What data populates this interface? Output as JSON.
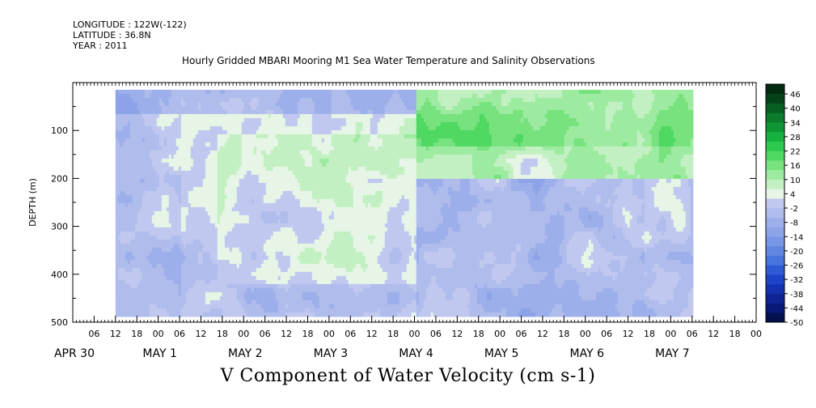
{
  "header": {
    "longitude": "LONGITUDE : 122W(-122)",
    "latitude": "LATITUDE : 36.8N",
    "year": "YEAR : 2011",
    "title": "Hourly Gridded MBARI Mooring M1 Sea Water Temperature and Salinity Observations"
  },
  "chart_data": {
    "type": "heatmap",
    "title": "Hourly Gridded MBARI Mooring M1 Sea Water Temperature and Salinity Observations",
    "xlabel": "V Component of Water Velocity (cm s-1)",
    "ylabel": "DEPTH (m)",
    "x_ticks": [
      "06",
      "12",
      "18",
      "00",
      "06",
      "12",
      "18",
      "00",
      "06",
      "12",
      "18",
      "00",
      "06",
      "12",
      "18",
      "00",
      "06",
      "12",
      "18",
      "00",
      "06",
      "12",
      "18",
      "00",
      "06",
      "12",
      "18",
      "00",
      "06",
      "12",
      "18",
      "00"
    ],
    "date_labels": [
      "APR 30",
      "MAY  1",
      "MAY  2",
      "MAY  3",
      "MAY  4",
      "MAY  5",
      "MAY  6",
      "MAY  7"
    ],
    "y_ticks": [
      100,
      200,
      300,
      400,
      500
    ],
    "ylim": [
      500,
      0
    ],
    "colorbar_labels": [
      "46",
      "40",
      "34",
      "28",
      "22",
      "16",
      "10",
      "4",
      "-2",
      "-8",
      "-14",
      "-20",
      "-26",
      "-32",
      "-38",
      "-44",
      "-50"
    ],
    "colorbar_range": [
      -50,
      50
    ],
    "colors": [
      "#02114e",
      "#081a78",
      "#0f2596",
      "#1431b2",
      "#1d43c8",
      "#2e5ad6",
      "#4774de",
      "#6086e2",
      "#7896e6",
      "#8da3e8",
      "#9dafea",
      "#afbcec",
      "#c0c8ef",
      "#e6f5e6",
      "#c3f0c3",
      "#9deba0",
      "#77e27e",
      "#4fd862",
      "#2bc94d",
      "#16b13e",
      "#0e9634",
      "#0a7c2b",
      "#075f22",
      "#04431a",
      "#022b10"
    ],
    "data_extent_hours": [
      12,
      174
    ],
    "depth_extent": [
      15,
      485
    ]
  }
}
